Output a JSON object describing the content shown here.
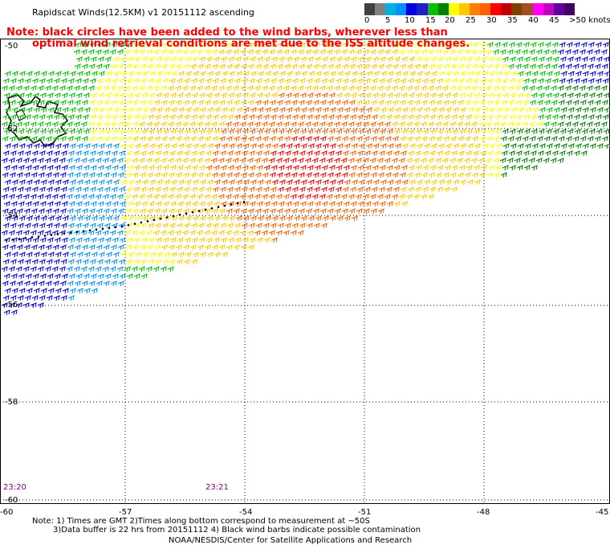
{
  "header": {
    "title": "Rapidscat Winds(12.5KM) v1 20151112 ascending"
  },
  "legend": {
    "colors": [
      "#404040",
      "#808080",
      "#00b0e0",
      "#0090ff",
      "#0000e0",
      "#2020c0",
      "#00c000",
      "#008000",
      "#ffff00",
      "#ffc800",
      "#ff8000",
      "#ff6000",
      "#ff0000",
      "#c00000",
      "#804000",
      "#a05020",
      "#ff00ff",
      "#c000c0",
      "#6000a0",
      "#400060"
    ],
    "labels": [
      "0",
      "5",
      "10",
      "15",
      "20",
      "25",
      "30",
      "35",
      "40",
      "45",
      ">50 knots"
    ]
  },
  "note": {
    "line1": "Note: black circles have been added to the wind barbs, wherever less than",
    "line2": "optimal wind retrieval conditions are met due to the ISS altitude changes."
  },
  "axes": {
    "x_ticks": [
      "-60",
      "-57",
      "-54",
      "-51",
      "-48",
      "-45"
    ],
    "y_ticks_left": [
      "-50",
      "-52",
      "-54",
      "-56",
      "-58",
      "-60"
    ]
  },
  "times": {
    "left": "23:20",
    "mid": "23:21"
  },
  "footer": {
    "line1": "Note: 1) Times are GMT 2)Times along bottom correspond to measurement at ~50S",
    "line2": "3)Data buffer is 22 hrs from 20151112 4) Black wind barbs indicate possible contamination",
    "line3": "NOAA/NESDIS/Center for Satellite Applications and Research"
  }
}
